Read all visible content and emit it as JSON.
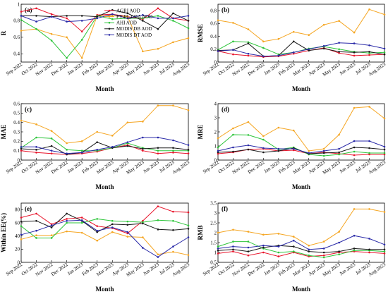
{
  "months": [
    "Sep 2022",
    "Oct 2022",
    "Nov 2022",
    "Dec 2022",
    "Jan 2023",
    "Feb 2023",
    "Mar 2023",
    "Apr 2023",
    "May 2023",
    "Jun 2023",
    "Jul 2023",
    "Aug 2023"
  ],
  "colors": {
    "AGRI AOD": "#e8142b",
    "FY4B_LDA AOD": "#f5a623",
    "AHI AOD": "#2ec53b",
    "MODIS DB AOD": "#1a1a1a",
    "MODIS DT AOD": "#2a2aa8"
  },
  "chart_data": [
    {
      "type": "line",
      "panel_label": "(a)",
      "ylabel": "R",
      "xlabel": "Month",
      "ylim": [
        0.3,
        1.0
      ],
      "yticks": [
        "0.4",
        "0.6",
        "0.8",
        "1"
      ],
      "ytick_values": [
        0.4,
        0.6,
        0.8,
        1.0
      ],
      "legend_position": "top-center",
      "legend": [
        "AGRI AOD",
        "FY4B_LDA AOD",
        "AHI AOD",
        "MODIS DB AOD",
        "MODIS DT AOD"
      ],
      "series": [
        {
          "name": "AGRI AOD",
          "values": [
            0.91,
            0.95,
            0.88,
            0.83,
            0.67,
            0.87,
            0.88,
            0.85,
            0.82,
            0.95,
            0.83,
            0.8
          ]
        },
        {
          "name": "FY4B_LDA AOD",
          "values": [
            0.68,
            0.7,
            0.64,
            0.6,
            0.35,
            0.86,
            0.86,
            0.85,
            0.43,
            0.46,
            0.54,
            0.59
          ]
        },
        {
          "name": "AHI AOD",
          "values": [
            0.81,
            0.7,
            0.56,
            0.35,
            0.57,
            0.86,
            0.82,
            0.83,
            0.83,
            0.86,
            0.8,
            0.71
          ]
        },
        {
          "name": "MODIS DB AOD",
          "values": [
            0.86,
            0.86,
            0.85,
            0.86,
            0.86,
            0.85,
            0.93,
            0.89,
            0.8,
            0.7,
            0.89,
            0.8
          ]
        },
        {
          "name": "MODIS DT AOD",
          "values": [
            0.86,
            0.79,
            0.85,
            0.79,
            0.8,
            0.83,
            0.88,
            0.83,
            0.87,
            0.83,
            0.83,
            0.86
          ]
        }
      ]
    },
    {
      "type": "line",
      "panel_label": "(b)",
      "ylabel": "RMSE",
      "xlabel": "Month",
      "ylim": [
        0,
        0.9
      ],
      "yticks": [
        "0",
        "0.2",
        "0.4",
        "0.6",
        "0.8"
      ],
      "ytick_values": [
        0,
        0.2,
        0.4,
        0.6,
        0.8
      ],
      "series": [
        {
          "name": "AGRI AOD",
          "values": [
            0.17,
            0.12,
            0.1,
            0.08,
            0.09,
            0.13,
            0.18,
            0.22,
            0.14,
            0.1,
            0.11,
            0.12
          ]
        },
        {
          "name": "FY4B_LDA AOD",
          "values": [
            0.65,
            0.61,
            0.51,
            0.32,
            0.36,
            0.47,
            0.42,
            0.58,
            0.64,
            0.46,
            0.82,
            0.74
          ]
        },
        {
          "name": "AHI AOD",
          "values": [
            0.19,
            0.32,
            0.31,
            0.22,
            0.12,
            0.15,
            0.21,
            0.24,
            0.2,
            0.16,
            0.14,
            0.15
          ]
        },
        {
          "name": "MODIS DB AOD",
          "values": [
            0.18,
            0.19,
            0.29,
            0.09,
            0.1,
            0.32,
            0.18,
            0.21,
            0.16,
            0.15,
            0.16,
            0.12
          ]
        },
        {
          "name": "MODIS DT AOD",
          "values": [
            0.17,
            0.19,
            0.13,
            0.09,
            0.1,
            0.15,
            0.2,
            0.25,
            0.3,
            0.29,
            0.26,
            0.21
          ]
        }
      ]
    },
    {
      "type": "line",
      "panel_label": "(c)",
      "ylabel": "MAE",
      "xlabel": "Month",
      "ylim": [
        0,
        0.6
      ],
      "yticks": [
        "0",
        "0.1",
        "0.2",
        "0.3",
        "0.4",
        "0.5",
        "0.6"
      ],
      "ytick_values": [
        0,
        0.1,
        0.2,
        0.3,
        0.4,
        0.5,
        0.6
      ],
      "series": [
        {
          "name": "AGRI AOD",
          "values": [
            0.1,
            0.08,
            0.07,
            0.06,
            0.07,
            0.09,
            0.13,
            0.16,
            0.1,
            0.07,
            0.08,
            0.07
          ]
        },
        {
          "name": "FY4B_LDA AOD",
          "values": [
            0.42,
            0.38,
            0.31,
            0.18,
            0.2,
            0.3,
            0.26,
            0.4,
            0.41,
            0.58,
            0.58,
            0.53
          ]
        },
        {
          "name": "AHI AOD",
          "values": [
            0.13,
            0.24,
            0.23,
            0.11,
            0.1,
            0.1,
            0.13,
            0.18,
            0.13,
            0.1,
            0.1,
            0.1
          ]
        },
        {
          "name": "MODIS DB AOD",
          "values": [
            0.12,
            0.11,
            0.15,
            0.06,
            0.08,
            0.19,
            0.13,
            0.15,
            0.12,
            0.13,
            0.13,
            0.11
          ]
        },
        {
          "name": "MODIS DT AOD",
          "values": [
            0.14,
            0.14,
            0.1,
            0.07,
            0.08,
            0.11,
            0.14,
            0.19,
            0.24,
            0.24,
            0.21,
            0.16
          ]
        }
      ]
    },
    {
      "type": "line",
      "panel_label": "(d)",
      "ylabel": "MRE",
      "xlabel": "Month",
      "ylim": [
        0,
        4
      ],
      "yticks": [
        "0",
        "1",
        "2",
        "3",
        "4"
      ],
      "ytick_values": [
        0,
        1,
        2,
        3,
        4
      ],
      "series": [
        {
          "name": "AGRI AOD",
          "values": [
            0.45,
            0.55,
            0.75,
            0.8,
            0.65,
            0.7,
            0.45,
            0.55,
            0.45,
            0.35,
            0.4,
            0.4
          ]
        },
        {
          "name": "FY4B_LDA AOD",
          "values": [
            1.55,
            2.25,
            2.7,
            1.7,
            2.3,
            2.1,
            0.65,
            0.8,
            1.8,
            3.7,
            3.78,
            2.95
          ]
        },
        {
          "name": "AHI AOD",
          "values": [
            0.9,
            1.8,
            1.78,
            1.45,
            0.75,
            0.9,
            0.4,
            0.3,
            0.4,
            0.6,
            0.5,
            0.5
          ]
        },
        {
          "name": "MODIS DB AOD",
          "values": [
            0.55,
            0.6,
            0.75,
            0.55,
            0.65,
            0.85,
            0.45,
            0.5,
            0.55,
            0.9,
            0.85,
            0.75
          ]
        },
        {
          "name": "MODIS DT AOD",
          "values": [
            0.65,
            0.9,
            1.05,
            0.85,
            0.8,
            0.8,
            0.5,
            0.65,
            0.8,
            1.35,
            1.35,
            0.95
          ]
        }
      ]
    },
    {
      "type": "line",
      "panel_label": "(e)",
      "ylabel": "Within EE(%)",
      "xlabel": "Month",
      "ylim": [
        0,
        90
      ],
      "yticks": [
        "0",
        "20",
        "40",
        "60",
        "80"
      ],
      "ytick_values": [
        0,
        20,
        40,
        60,
        80
      ],
      "series": [
        {
          "name": "AGRI AOD",
          "values": [
            68,
            74,
            58,
            66,
            68,
            55,
            52,
            44,
            63,
            85,
            77,
            76
          ]
        },
        {
          "name": "FY4B_LDA AOD",
          "values": [
            35,
            41,
            41,
            47,
            45,
            33,
            46,
            39,
            38,
            12,
            16,
            11
          ]
        },
        {
          "name": "AHI AOD",
          "values": [
            55,
            37,
            37,
            60,
            60,
            66,
            63,
            62,
            61,
            64,
            63,
            56
          ]
        },
        {
          "name": "MODIS DB AOD",
          "values": [
            62,
            63,
            53,
            74,
            63,
            46,
            58,
            57,
            59,
            50,
            49,
            51
          ]
        },
        {
          "name": "MODIS DT AOD",
          "values": [
            42,
            48,
            56,
            63,
            64,
            48,
            53,
            46,
            22,
            8,
            24,
            38
          ]
        }
      ]
    },
    {
      "type": "line",
      "panel_label": "(f)",
      "ylabel": "RMB",
      "xlabel": "Month",
      "ylim": [
        0.5,
        3.5
      ],
      "yticks": [
        "0.5",
        "1",
        "1.5",
        "2",
        "2.5",
        "3",
        "3.5"
      ],
      "ytick_values": [
        0.5,
        1,
        1.5,
        2,
        2.5,
        3,
        3.5
      ],
      "series": [
        {
          "name": "AGRI AOD",
          "values": [
            0.95,
            1.05,
            0.85,
            1.0,
            0.8,
            1.0,
            0.8,
            0.85,
            1.0,
            1.05,
            1.0,
            0.95
          ]
        },
        {
          "name": "FY4B_LDA AOD",
          "values": [
            2.0,
            2.15,
            2.05,
            1.9,
            1.95,
            1.8,
            1.35,
            1.55,
            2.05,
            3.2,
            3.2,
            3.05
          ]
        },
        {
          "name": "AHI AOD",
          "values": [
            1.3,
            1.55,
            1.55,
            1.2,
            1.0,
            1.05,
            0.85,
            0.75,
            0.9,
            1.1,
            1.1,
            1.05
          ]
        },
        {
          "name": "MODIS DB AOD",
          "values": [
            1.1,
            1.15,
            1.05,
            1.25,
            1.35,
            1.3,
            1.05,
            1.0,
            1.05,
            1.2,
            1.15,
            1.15
          ]
        },
        {
          "name": "MODIS DT AOD",
          "values": [
            1.2,
            1.3,
            1.25,
            1.35,
            1.3,
            1.6,
            1.15,
            1.2,
            1.5,
            1.85,
            1.7,
            1.4
          ]
        }
      ]
    }
  ]
}
